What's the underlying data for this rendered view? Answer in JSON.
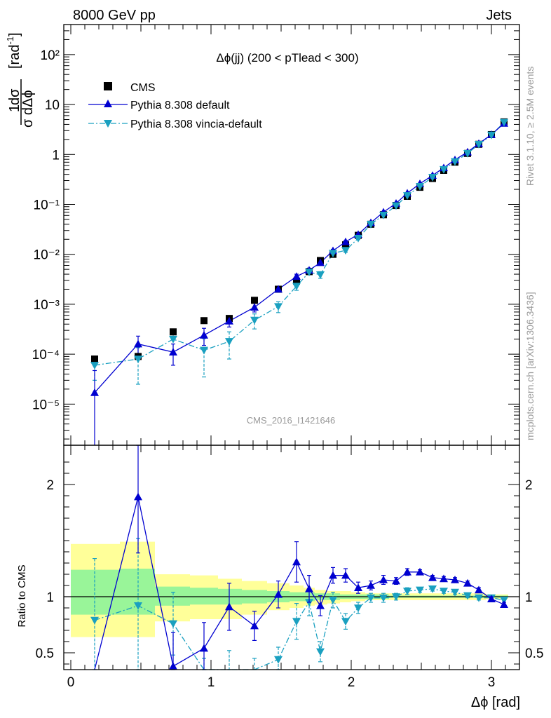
{
  "header": {
    "left": "8000 GeV pp",
    "right": "Jets"
  },
  "side_labels": {
    "rivet": "Rivet 3.1.10, ≥ 2.5M events",
    "mcplots": "mcplots.cern.ch [arXiv:1306.3436]"
  },
  "watermark": "CMS_2016_I1421646",
  "colors": {
    "cms": "#000000",
    "default": "#0000d0",
    "vincia": "#1aa0c0",
    "band_outer": "#ffff99",
    "band_inner": "#99f599"
  },
  "chart_data": [
    {
      "type": "scatter",
      "panel": "main",
      "title": "Δϕ(jj) (200 < pTlead <  300)",
      "ylabel": "1/σ dσ/dΔϕ [rad⁻¹]",
      "yscale": "log",
      "ylim": [
        1.5e-06,
        400
      ],
      "xlim": [
        -0.05,
        3.2
      ],
      "y_tick_labels": [
        "10⁻⁵",
        "10⁻⁴",
        "10⁻³",
        "10⁻²",
        "10⁻¹",
        "1",
        "10",
        "10²"
      ],
      "legend": [
        "CMS",
        "Pythia 8.308 default",
        "Pythia 8.308 vincia-default"
      ],
      "x": [
        0.17,
        0.48,
        0.73,
        0.95,
        1.13,
        1.31,
        1.48,
        1.61,
        1.7,
        1.78,
        1.87,
        1.96,
        2.05,
        2.14,
        2.23,
        2.32,
        2.4,
        2.49,
        2.58,
        2.66,
        2.74,
        2.83,
        2.91,
        3.0,
        3.09
      ],
      "series": [
        {
          "name": "CMS",
          "style": "square",
          "values": [
            8e-05,
            9e-05,
            0.00028,
            0.00047,
            0.00052,
            0.0012,
            0.002,
            0.0029,
            0.0045,
            0.0075,
            0.01,
            0.0155,
            0.024,
            0.04,
            0.062,
            0.095,
            0.145,
            0.22,
            0.33,
            0.48,
            0.7,
            1.05,
            1.6,
            2.5,
            4.5
          ]
        },
        {
          "name": "Pythia 8.308 default",
          "style": "triangle-up",
          "values": [
            1.7e-05,
            0.00016,
            0.00011,
            0.00024,
            0.00046,
            0.00087,
            0.002,
            0.0036,
            0.0048,
            0.0068,
            0.0118,
            0.0178,
            0.025,
            0.043,
            0.07,
            0.105,
            0.168,
            0.26,
            0.38,
            0.54,
            0.78,
            1.12,
            1.65,
            2.5,
            4.2
          ],
          "err_low": [
            1.7e-05,
            7e-05,
            5e-05,
            9e-05,
            0.00011,
            0.00017,
            0.00025,
            0.0004,
            0.0005,
            0.0006,
            0.0008,
            0.001,
            0.0012,
            0.0015,
            0.002,
            0.003,
            0.004,
            0.005,
            0.006,
            0.008,
            0.01,
            0.015,
            0.02,
            0.03,
            0.04
          ],
          "err_high": [
            3e-05,
            7e-05,
            5e-05,
            9e-05,
            0.00011,
            0.00017,
            0.00025,
            0.0004,
            0.0005,
            0.0006,
            0.0008,
            0.001,
            0.0012,
            0.0015,
            0.002,
            0.003,
            0.004,
            0.005,
            0.006,
            0.008,
            0.01,
            0.015,
            0.02,
            0.03,
            0.04
          ]
        },
        {
          "name": "Pythia 8.308 vincia-default",
          "style": "triangle-down",
          "values": [
            6e-05,
            8e-05,
            0.0002,
            0.00012,
            0.00018,
            0.00048,
            0.0009,
            0.0023,
            0.0044,
            0.0039,
            0.0105,
            0.012,
            0.021,
            0.04,
            0.061,
            0.094,
            0.15,
            0.23,
            0.35,
            0.5,
            0.72,
            1.05,
            1.6,
            2.45,
            4.4
          ],
          "err_low": [
            3e-05,
            5.5e-05,
            9e-05,
            8.5e-05,
            0.0001,
            0.00016,
            0.00022,
            0.0004,
            0.0005,
            0.0006,
            0.0008,
            0.001,
            0.0012,
            0.0015,
            0.002,
            0.003,
            0.004,
            0.005,
            0.006,
            0.008,
            0.01,
            0.015,
            0.02,
            0.03,
            0.04
          ],
          "err_high": [
            3e-05,
            5.5e-05,
            9e-05,
            8.5e-05,
            0.0001,
            0.00016,
            0.00022,
            0.0004,
            0.0005,
            0.0006,
            0.0008,
            0.001,
            0.0012,
            0.0015,
            0.002,
            0.003,
            0.004,
            0.005,
            0.006,
            0.008,
            0.01,
            0.015,
            0.02,
            0.03,
            0.04
          ]
        }
      ]
    },
    {
      "type": "line",
      "panel": "ratio",
      "ylabel": "Ratio to CMS",
      "xlabel": "Δϕ [rad]",
      "xlim": [
        -0.05,
        3.2
      ],
      "ylim": [
        0.35,
        2.35
      ],
      "x_ticks": [
        0,
        1,
        2,
        3
      ],
      "y_ticks": [
        0.5,
        1,
        2
      ],
      "x": [
        0.17,
        0.48,
        0.73,
        0.95,
        1.13,
        1.31,
        1.48,
        1.61,
        1.7,
        1.78,
        1.87,
        1.96,
        2.05,
        2.14,
        2.23,
        2.32,
        2.4,
        2.49,
        2.58,
        2.66,
        2.74,
        2.83,
        2.91,
        3.0,
        3.09
      ],
      "bands": {
        "edges": [
          0.0,
          0.35,
          0.6,
          0.85,
          1.05,
          1.22,
          1.4,
          1.56,
          1.66,
          1.74,
          1.83,
          1.92,
          2.0,
          2.1,
          2.18,
          2.27,
          2.36,
          2.45,
          2.54,
          2.62,
          2.7,
          2.79,
          2.87,
          2.96,
          3.04,
          3.12
        ],
        "outer_low": [
          0.64,
          0.64,
          0.78,
          0.8,
          0.8,
          0.84,
          0.88,
          0.9,
          0.92,
          0.93,
          0.94,
          0.95,
          0.96,
          0.97,
          0.97,
          0.97,
          0.97,
          0.97,
          0.97,
          0.97,
          0.97,
          0.97,
          0.97,
          0.98,
          0.98
        ],
        "outer_high": [
          1.47,
          1.49,
          1.2,
          1.19,
          1.16,
          1.14,
          1.12,
          1.1,
          1.08,
          1.06,
          1.05,
          1.05,
          1.04,
          1.03,
          1.03,
          1.03,
          1.03,
          1.03,
          1.03,
          1.03,
          1.03,
          1.03,
          1.03,
          1.02,
          1.02
        ],
        "inner_low": [
          0.84,
          0.84,
          0.92,
          0.93,
          0.93,
          0.94,
          0.95,
          0.96,
          0.96,
          0.97,
          0.97,
          0.98,
          0.98,
          0.98,
          0.98,
          0.99,
          0.99,
          0.99,
          0.99,
          0.99,
          0.99,
          0.99,
          0.99,
          0.99,
          0.99
        ],
        "inner_high": [
          1.24,
          1.25,
          1.09,
          1.08,
          1.07,
          1.06,
          1.05,
          1.04,
          1.04,
          1.03,
          1.03,
          1.02,
          1.02,
          1.02,
          1.02,
          1.01,
          1.01,
          1.01,
          1.01,
          1.01,
          1.01,
          1.01,
          1.01,
          1.01,
          1.01
        ]
      },
      "series": [
        {
          "name": "Pythia 8.308 default",
          "values": [
            0.21,
            1.89,
            0.38,
            0.54,
            0.91,
            0.74,
            1.02,
            1.31,
            1.07,
            0.92,
            1.19,
            1.19,
            1.08,
            1.1,
            1.15,
            1.14,
            1.22,
            1.22,
            1.17,
            1.16,
            1.15,
            1.12,
            1.06,
            0.98,
            0.93
          ],
          "err": [
            0.0,
            0.5,
            0.3,
            0.23,
            0.21,
            0.13,
            0.12,
            0.18,
            0.12,
            0.09,
            0.07,
            0.06,
            0.05,
            0.04,
            0.04,
            0.03,
            0.03,
            0.02,
            0.02,
            0.02,
            0.02,
            0.02,
            0.02,
            0.02,
            0.02
          ]
        },
        {
          "name": "Pythia 8.308 vincia-default",
          "values": [
            0.79,
            0.92,
            0.76,
            0.25,
            0.32,
            0.3,
            0.44,
            0.78,
            0.95,
            0.51,
            0.97,
            0.78,
            0.9,
            0.99,
            0.99,
            1.0,
            1.05,
            1.06,
            1.07,
            1.05,
            1.04,
            1.01,
            0.99,
            0.99,
            0.97
          ],
          "err": [
            0.55,
            0.6,
            0.28,
            0.2,
            0.2,
            0.15,
            0.11,
            0.16,
            0.12,
            0.09,
            0.07,
            0.07,
            0.05,
            0.04,
            0.04,
            0.03,
            0.03,
            0.02,
            0.02,
            0.02,
            0.02,
            0.02,
            0.02,
            0.02,
            0.02
          ]
        }
      ]
    }
  ]
}
